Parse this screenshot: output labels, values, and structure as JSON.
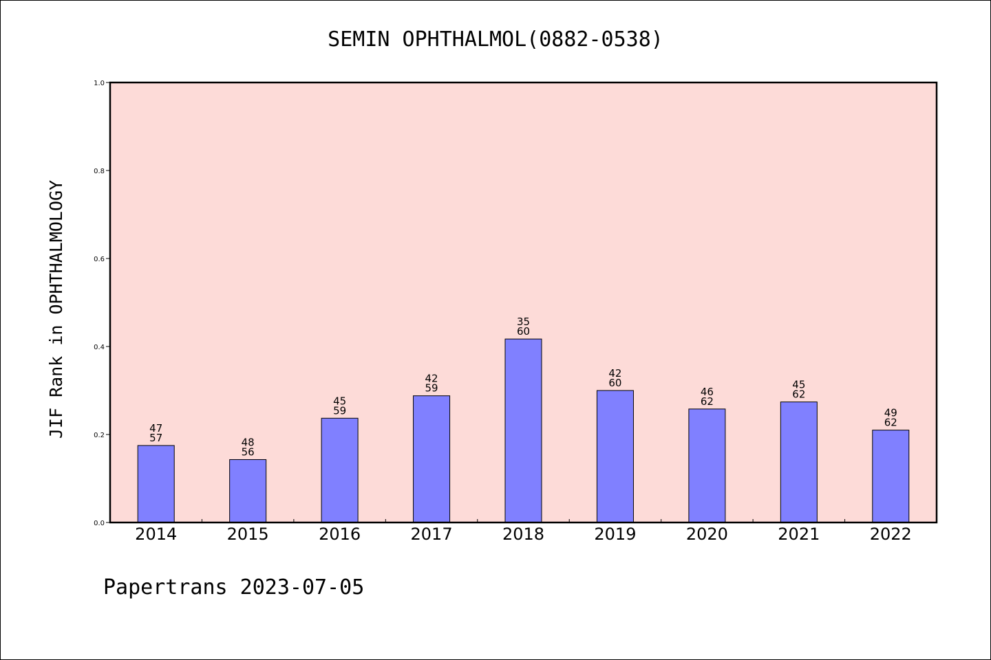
{
  "chart_data": {
    "type": "bar",
    "title": "SEMIN OPHTHALMOL(0882-0538)",
    "ylabel": "JIF Rank in OPHTHALMOLOGY",
    "xlabel": "",
    "footer": "Papertrans 2023-07-05",
    "categories": [
      "2014",
      "2015",
      "2016",
      "2017",
      "2018",
      "2019",
      "2020",
      "2021",
      "2022"
    ],
    "ranks": [
      "47",
      "48",
      "45",
      "42",
      "35",
      "42",
      "46",
      "45",
      "49"
    ],
    "totals": [
      "57",
      "56",
      "59",
      "59",
      "60",
      "60",
      "62",
      "62",
      "62"
    ],
    "values": [
      0.175,
      0.143,
      0.237,
      0.288,
      0.417,
      0.3,
      0.258,
      0.274,
      0.21
    ],
    "ylim": [
      0.0,
      1.0
    ],
    "yticks": [
      "0.0",
      "0.2",
      "0.4",
      "0.6",
      "0.8",
      "1.0"
    ],
    "grid": false,
    "legend": "none",
    "colors": {
      "plot_background": "#fddbd8",
      "bar_fill": "#8080ff",
      "bar_stroke": "#000000",
      "axis": "#000000"
    }
  }
}
